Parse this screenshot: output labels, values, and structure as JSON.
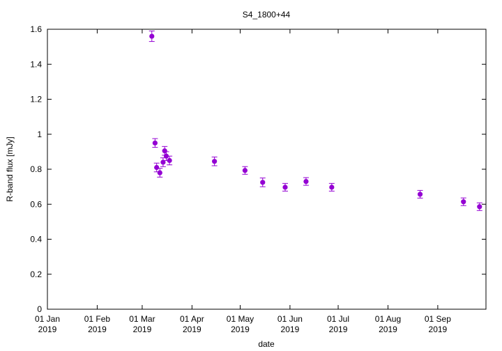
{
  "chart_data": {
    "type": "scatter",
    "title": "S4_1800+44",
    "xlabel": "date",
    "ylabel": "R-band flux [mJy]",
    "xlim": [
      "2019-01-01",
      "2019-10-01"
    ],
    "ylim": [
      0,
      1.6
    ],
    "yticks": [
      0,
      0.2,
      0.4,
      0.6,
      0.8,
      1,
      1.2,
      1.4,
      1.6
    ],
    "ytick_labels": [
      "0",
      "0.2",
      "0.4",
      "0.6",
      "0.8",
      "1",
      "1.2",
      "1.4",
      "1.6"
    ],
    "xticks": [
      {
        "date": "2019-01-01",
        "label1": "01 Jan",
        "label2": "2019"
      },
      {
        "date": "2019-02-01",
        "label1": "01 Feb",
        "label2": "2019"
      },
      {
        "date": "2019-03-01",
        "label1": "01 Mar",
        "label2": "2019"
      },
      {
        "date": "2019-04-01",
        "label1": "01 Apr",
        "label2": "2019"
      },
      {
        "date": "2019-05-01",
        "label1": "01 May",
        "label2": "2019"
      },
      {
        "date": "2019-06-01",
        "label1": "01 Jun",
        "label2": "2019"
      },
      {
        "date": "2019-07-01",
        "label1": "01 Jul",
        "label2": "2019"
      },
      {
        "date": "2019-08-01",
        "label1": "01 Aug",
        "label2": "2019"
      },
      {
        "date": "2019-09-01",
        "label1": "01 Sep",
        "label2": "2019"
      }
    ],
    "color": "#9400d3",
    "points": [
      {
        "date": "2019-03-07",
        "y": 1.56,
        "err": 0.03
      },
      {
        "date": "2019-03-09",
        "y": 0.95,
        "err": 0.025
      },
      {
        "date": "2019-03-10",
        "y": 0.81,
        "err": 0.025
      },
      {
        "date": "2019-03-12",
        "y": 0.78,
        "err": 0.025
      },
      {
        "date": "2019-03-14",
        "y": 0.84,
        "err": 0.025
      },
      {
        "date": "2019-03-15",
        "y": 0.905,
        "err": 0.025
      },
      {
        "date": "2019-03-16",
        "y": 0.875,
        "err": 0.025
      },
      {
        "date": "2019-03-18",
        "y": 0.85,
        "err": 0.025
      },
      {
        "date": "2019-04-15",
        "y": 0.845,
        "err": 0.025
      },
      {
        "date": "2019-05-04",
        "y": 0.793,
        "err": 0.022
      },
      {
        "date": "2019-05-15",
        "y": 0.725,
        "err": 0.025
      },
      {
        "date": "2019-05-29",
        "y": 0.697,
        "err": 0.022
      },
      {
        "date": "2019-06-11",
        "y": 0.73,
        "err": 0.022
      },
      {
        "date": "2019-06-27",
        "y": 0.697,
        "err": 0.022
      },
      {
        "date": "2019-08-21",
        "y": 0.657,
        "err": 0.022
      },
      {
        "date": "2019-09-17",
        "y": 0.614,
        "err": 0.022
      },
      {
        "date": "2019-09-27",
        "y": 0.586,
        "err": 0.022
      }
    ]
  }
}
